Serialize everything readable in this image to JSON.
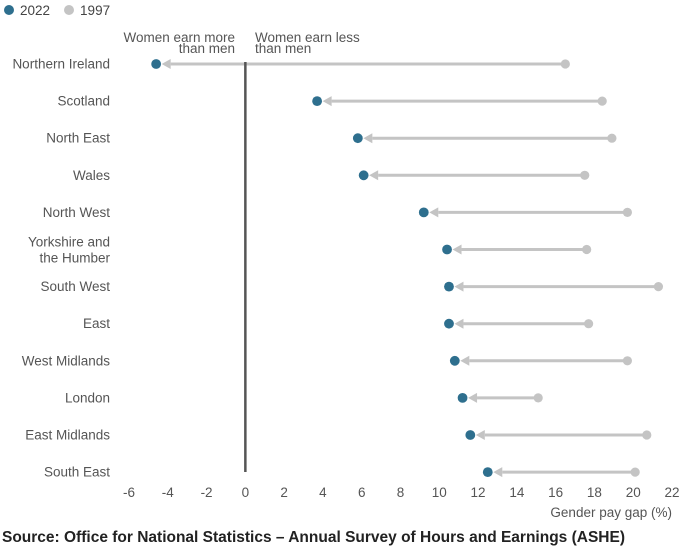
{
  "legend": [
    {
      "label": "2022",
      "color": "#2e6f8e"
    },
    {
      "label": "1997",
      "color": "#c4c4c4"
    }
  ],
  "annotations": {
    "left": [
      "Women earn more",
      "than men"
    ],
    "right": [
      "Women earn less",
      "than men"
    ]
  },
  "source": "Source: Office for National Statistics – Annual Survey of Hours and Earnings (ASHE)",
  "chart_data": {
    "type": "dumbbell",
    "title": "",
    "xlabel": "Gender pay gap (%)",
    "ylabel": "",
    "xlim": [
      -6,
      22
    ],
    "xticks": [
      -6,
      -4,
      -2,
      0,
      2,
      4,
      6,
      8,
      10,
      12,
      14,
      16,
      18,
      20,
      22
    ],
    "reference_line": 0,
    "categories": [
      "Northern Ireland",
      "Scotland",
      "North East",
      "Wales",
      "North West",
      "Yorkshire and the Humber",
      "South West",
      "East",
      "West Midlands",
      "London",
      "East Midlands",
      "South East"
    ],
    "category_lines": [
      [
        "Northern Ireland"
      ],
      [
        "Scotland"
      ],
      [
        "North East"
      ],
      [
        "Wales"
      ],
      [
        "North West"
      ],
      [
        "Yorkshire and",
        "the Humber"
      ],
      [
        "South West"
      ],
      [
        "East"
      ],
      [
        "West Midlands"
      ],
      [
        "London"
      ],
      [
        "East Midlands"
      ],
      [
        "South East"
      ]
    ],
    "series": [
      {
        "name": "2022",
        "color": "#2e6f8e",
        "values": [
          -4.6,
          3.7,
          5.8,
          6.1,
          9.2,
          10.4,
          10.5,
          10.5,
          10.8,
          11.2,
          11.6,
          12.5
        ]
      },
      {
        "name": "1997",
        "color": "#c4c4c4",
        "values": [
          16.5,
          18.4,
          18.9,
          17.5,
          19.7,
          17.6,
          21.3,
          17.7,
          19.7,
          15.1,
          20.7,
          20.1
        ]
      }
    ]
  }
}
